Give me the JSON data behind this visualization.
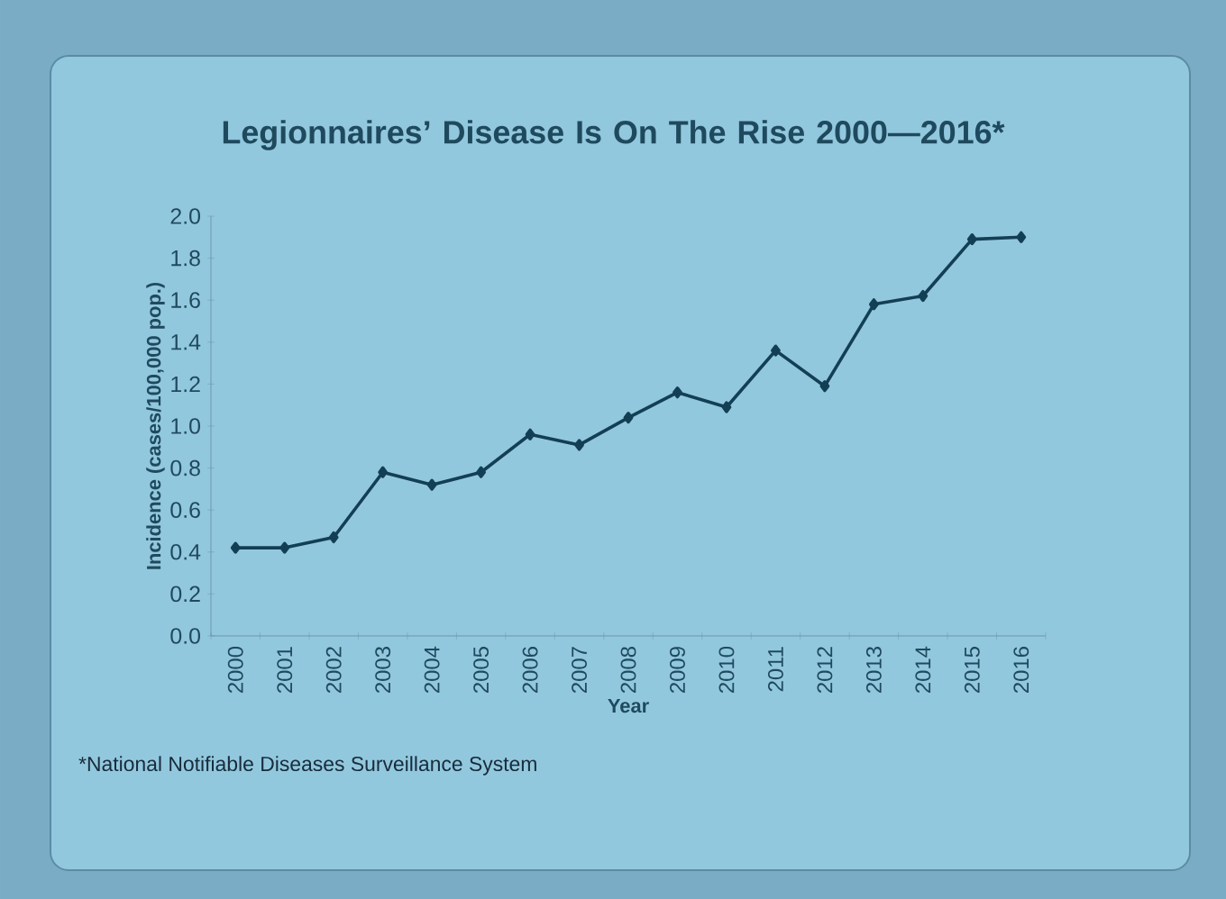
{
  "chart_data": {
    "type": "line",
    "title": "Legionnaires’ Disease Is On The Rise 2000—2016*",
    "xlabel": "Year",
    "ylabel": "Incidence (cases/100,000 pop.)",
    "categories": [
      "2000",
      "2001",
      "2002",
      "2003",
      "2004",
      "2005",
      "2006",
      "2007",
      "2008",
      "2009",
      "2010",
      "2011",
      "2012",
      "2013",
      "2014",
      "2015",
      "2016"
    ],
    "values": [
      0.42,
      0.42,
      0.47,
      0.78,
      0.72,
      0.78,
      0.96,
      0.91,
      1.04,
      1.16,
      1.09,
      1.36,
      1.19,
      1.58,
      1.62,
      1.89,
      1.9
    ],
    "color": "#133f55",
    "marker": "diamond",
    "line_style": "solid",
    "ylim": [
      0,
      2.0
    ],
    "yticks": [
      {
        "value": 0,
        "label": "0.0"
      },
      {
        "value": 0.2,
        "label": "0.2"
      },
      {
        "value": 0.4,
        "label": "0.4"
      },
      {
        "value": 0.6,
        "label": "0.6"
      },
      {
        "value": 0.8,
        "label": "0.8"
      },
      {
        "value": 1.0,
        "label": "1.0"
      },
      {
        "value": 1.2,
        "label": "1.2"
      },
      {
        "value": 1.4,
        "label": "1.4"
      },
      {
        "value": 1.6,
        "label": "1.6"
      },
      {
        "value": 1.8,
        "label": "1.8"
      },
      {
        "value": 2.0,
        "label": "2.0"
      }
    ],
    "annotations": [
      "*National Notifiable Diseases Surveillance System"
    ]
  }
}
